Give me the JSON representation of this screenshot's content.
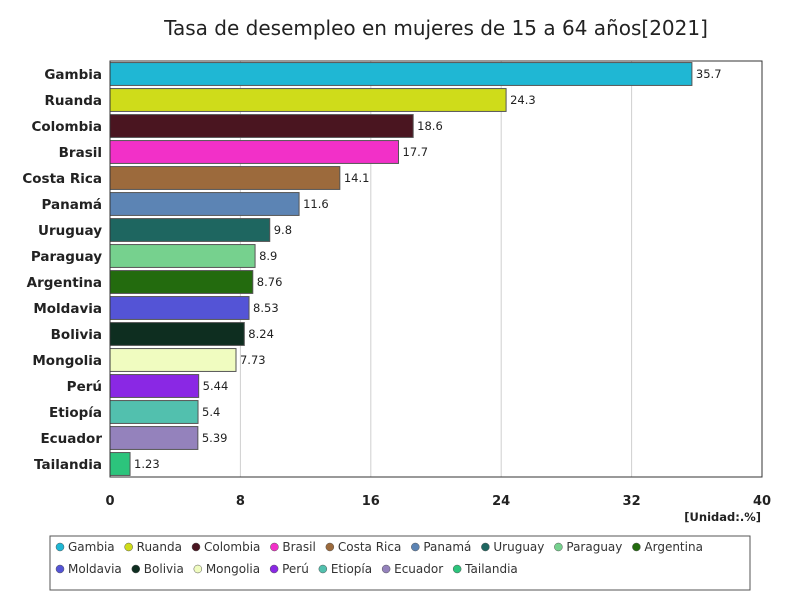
{
  "chart_data": {
    "type": "bar",
    "orientation": "horizontal",
    "title": "Tasa de desempleo en mujeres de 15 a 64 años[2021]",
    "unit_label": "[Unidad:.%]",
    "xlim": [
      0,
      40
    ],
    "xticks": [
      0,
      8,
      16,
      24,
      32,
      40
    ],
    "grid": true,
    "legend_position": "bottom",
    "categories": [
      "Gambia",
      "Ruanda",
      "Colombia",
      "Brasil",
      "Costa Rica",
      "Panamá",
      "Uruguay",
      "Paraguay",
      "Argentina",
      "Moldavia",
      "Bolivia",
      "Mongolia",
      "Perú",
      "Etiopía",
      "Ecuador",
      "Tailandia"
    ],
    "values": [
      35.7,
      24.3,
      18.6,
      17.7,
      14.1,
      11.6,
      9.8,
      8.9,
      8.76,
      8.53,
      8.24,
      7.73,
      5.44,
      5.4,
      5.39,
      1.23
    ],
    "colors": [
      "#1fb7d4",
      "#cfdc1a",
      "#4a1520",
      "#f230c8",
      "#9c6a3c",
      "#5c84b4",
      "#1e6660",
      "#76d18e",
      "#236b0e",
      "#5454d6",
      "#0e2e20",
      "#f0fcc0",
      "#8a28e4",
      "#52c0ae",
      "#9482bc",
      "#2cc47c"
    ]
  }
}
